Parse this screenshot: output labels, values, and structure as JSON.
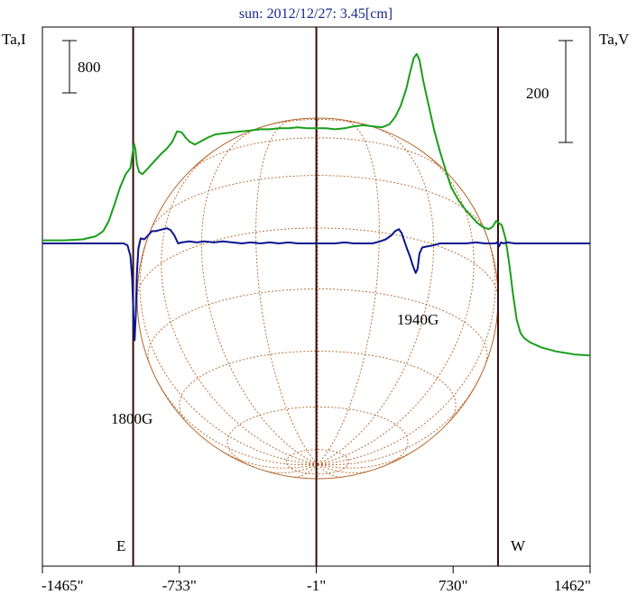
{
  "chart_data": {
    "type": "line",
    "title": "sun: 2012/12/27: 3.45[cm]",
    "y_left_label": "Ta,I",
    "y_right_label": "Ta,V",
    "scale_bar_left": "800",
    "scale_bar_right": "200",
    "xlim": [
      -1465,
      1462
    ],
    "x_ticks": [
      -1465,
      -733,
      -1,
      730,
      1462
    ],
    "x_tick_labels": [
      "-1465\"",
      "-733\"",
      "-1\"",
      "730\"",
      "1462\""
    ],
    "vertical_markers": [
      -980,
      -1,
      970
    ],
    "limb_labels": {
      "east": "E",
      "west": "W"
    },
    "solar_disk_radius_arcsec": 975,
    "annotations": [
      {
        "text": "1800G",
        "x": -960,
        "target": "stokes_v_dip"
      },
      {
        "text": "1940G",
        "x": 580,
        "target": "stokes_v_dip"
      }
    ],
    "series": [
      {
        "key": "stokes_i",
        "color": "#1a9e1a",
        "points": [
          [
            -1465,
            0.03
          ],
          [
            -1350,
            0.03
          ],
          [
            -1250,
            0.04
          ],
          [
            -1180,
            0.07
          ],
          [
            -1140,
            0.12
          ],
          [
            -1110,
            0.22
          ],
          [
            -1080,
            0.38
          ],
          [
            -1050,
            0.55
          ],
          [
            -1020,
            0.68
          ],
          [
            -995,
            0.74
          ],
          [
            -985,
            0.86
          ],
          [
            -975,
            0.98
          ],
          [
            -968,
            0.92
          ],
          [
            -960,
            0.78
          ],
          [
            -948,
            0.7
          ],
          [
            -930,
            0.68
          ],
          [
            -900,
            0.74
          ],
          [
            -860,
            0.82
          ],
          [
            -830,
            0.88
          ],
          [
            -800,
            0.93
          ],
          [
            -770,
            1.0
          ],
          [
            -745,
            1.1
          ],
          [
            -720,
            1.09
          ],
          [
            -700,
            1.04
          ],
          [
            -680,
            1.0
          ],
          [
            -650,
            0.97
          ],
          [
            -620,
            1.0
          ],
          [
            -580,
            1.04
          ],
          [
            -540,
            1.07
          ],
          [
            -500,
            1.08
          ],
          [
            -450,
            1.09
          ],
          [
            -400,
            1.1
          ],
          [
            -350,
            1.11
          ],
          [
            -300,
            1.12
          ],
          [
            -250,
            1.12
          ],
          [
            -200,
            1.13
          ],
          [
            -150,
            1.13
          ],
          [
            -100,
            1.14
          ],
          [
            -50,
            1.13
          ],
          [
            0,
            1.13
          ],
          [
            50,
            1.13
          ],
          [
            100,
            1.12
          ],
          [
            150,
            1.13
          ],
          [
            200,
            1.15
          ],
          [
            250,
            1.16
          ],
          [
            300,
            1.15
          ],
          [
            350,
            1.14
          ],
          [
            390,
            1.17
          ],
          [
            420,
            1.24
          ],
          [
            450,
            1.35
          ],
          [
            480,
            1.52
          ],
          [
            500,
            1.68
          ],
          [
            520,
            1.82
          ],
          [
            535,
            1.86
          ],
          [
            550,
            1.8
          ],
          [
            570,
            1.6
          ],
          [
            600,
            1.35
          ],
          [
            630,
            1.1
          ],
          [
            660,
            0.9
          ],
          [
            690,
            0.72
          ],
          [
            720,
            0.55
          ],
          [
            760,
            0.42
          ],
          [
            800,
            0.32
          ],
          [
            830,
            0.26
          ],
          [
            860,
            0.2
          ],
          [
            890,
            0.16
          ],
          [
            920,
            0.14
          ],
          [
            940,
            0.16
          ],
          [
            960,
            0.22
          ],
          [
            975,
            0.2
          ],
          [
            990,
            0.18
          ],
          [
            1010,
            0.05
          ],
          [
            1030,
            -0.2
          ],
          [
            1050,
            -0.5
          ],
          [
            1070,
            -0.75
          ],
          [
            1090,
            -0.88
          ],
          [
            1110,
            -0.93
          ],
          [
            1140,
            -0.97
          ],
          [
            1200,
            -1.02
          ],
          [
            1280,
            -1.06
          ],
          [
            1380,
            -1.09
          ],
          [
            1462,
            -1.1
          ]
        ]
      },
      {
        "key": "stokes_v",
        "color": "#0a1490",
        "points": [
          [
            -1465,
            0.0
          ],
          [
            -1200,
            0.0
          ],
          [
            -1100,
            0.0
          ],
          [
            -1030,
            0.0
          ],
          [
            -1010,
            -0.02
          ],
          [
            -995,
            -0.12
          ],
          [
            -985,
            -0.35
          ],
          [
            -978,
            -0.72
          ],
          [
            -972,
            -0.95
          ],
          [
            -966,
            -0.7
          ],
          [
            -960,
            -0.3
          ],
          [
            -952,
            -0.05
          ],
          [
            -940,
            0.05
          ],
          [
            -920,
            0.04
          ],
          [
            -900,
            0.08
          ],
          [
            -880,
            0.12
          ],
          [
            -860,
            0.12
          ],
          [
            -840,
            0.13
          ],
          [
            -820,
            0.14
          ],
          [
            -800,
            0.15
          ],
          [
            -780,
            0.13
          ],
          [
            -760,
            0.08
          ],
          [
            -740,
            0.0
          ],
          [
            -720,
            0.01
          ],
          [
            -680,
            0.02
          ],
          [
            -640,
            0.01
          ],
          [
            -600,
            0.02
          ],
          [
            -550,
            0.01
          ],
          [
            -500,
            0.02
          ],
          [
            -450,
            0.01
          ],
          [
            -400,
            0.0
          ],
          [
            -350,
            0.01
          ],
          [
            -300,
            0.0
          ],
          [
            -250,
            0.01
          ],
          [
            -200,
            0.0
          ],
          [
            -150,
            0.01
          ],
          [
            -100,
            0.0
          ],
          [
            -50,
            0.0
          ],
          [
            0,
            0.0
          ],
          [
            50,
            0.0
          ],
          [
            100,
            0.0
          ],
          [
            150,
            0.01
          ],
          [
            200,
            0.0
          ],
          [
            250,
            0.0
          ],
          [
            300,
            0.0
          ],
          [
            340,
            0.02
          ],
          [
            370,
            0.04
          ],
          [
            400,
            0.08
          ],
          [
            420,
            0.12
          ],
          [
            440,
            0.14
          ],
          [
            455,
            0.1
          ],
          [
            470,
            0.02
          ],
          [
            485,
            -0.06
          ],
          [
            500,
            -0.13
          ],
          [
            515,
            -0.22
          ],
          [
            530,
            -0.29
          ],
          [
            540,
            -0.25
          ],
          [
            550,
            -0.1
          ],
          [
            565,
            -0.04
          ],
          [
            590,
            -0.03
          ],
          [
            620,
            -0.02
          ],
          [
            660,
            0.0
          ],
          [
            700,
            0.0
          ],
          [
            750,
            0.0
          ],
          [
            800,
            0.0
          ],
          [
            850,
            0.01
          ],
          [
            900,
            0.0
          ],
          [
            930,
            0.0
          ],
          [
            955,
            0.0
          ],
          [
            965,
            0.01
          ],
          [
            975,
            -0.03
          ],
          [
            985,
            0.01
          ],
          [
            1000,
            0.0
          ],
          [
            1020,
            0.01
          ],
          [
            1060,
            0.0
          ],
          [
            1462,
            0.0
          ]
        ]
      }
    ]
  }
}
